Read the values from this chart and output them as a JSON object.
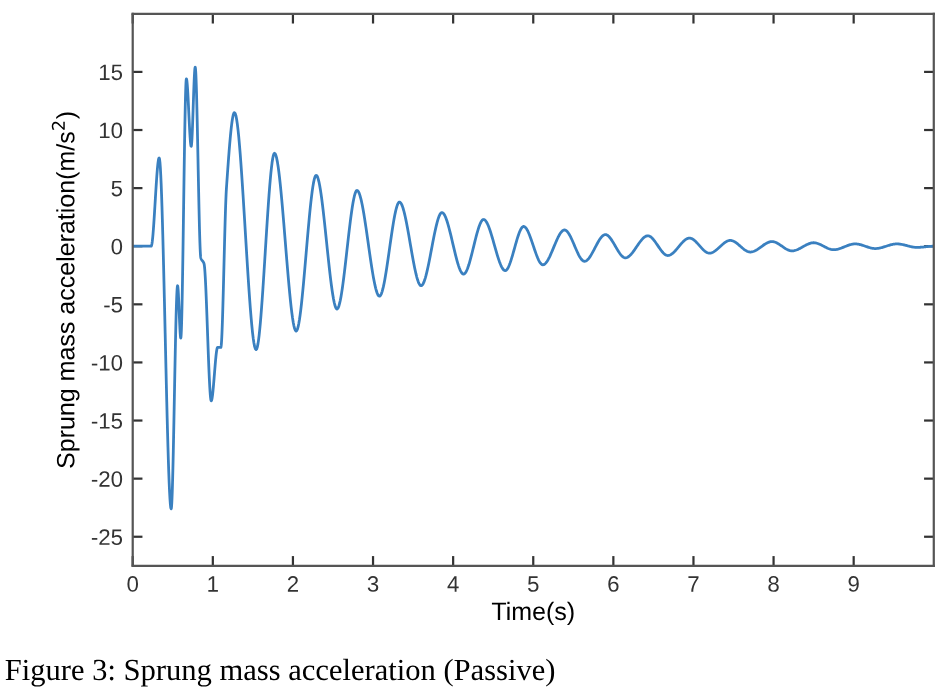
{
  "chart_data": {
    "type": "line",
    "xlabel": "Time(s)",
    "ylabel": "Sprung mass acceleration(m/s$^{2}$)",
    "annotations": [
      "Figure 3: Sprung mass acceleration (Passive)"
    ],
    "xlim": [
      0,
      10
    ],
    "ylim": [
      -27.5,
      20
    ],
    "xticks": [
      0,
      1,
      2,
      3,
      4,
      5,
      6,
      7,
      8,
      9
    ],
    "yticks": [
      -25,
      -20,
      -15,
      -10,
      -5,
      0,
      5,
      10,
      15
    ],
    "grid": false,
    "marker": "none",
    "line_style": "solid",
    "series": [
      {
        "color": "#3a80c0",
        "x": [
          0,
          0.23,
          0.33,
          0.48,
          0.56,
          0.6,
          0.67,
          0.73,
          0.78,
          0.85,
          0.89,
          0.98,
          1.06,
          1.1,
          1.17,
          1.27,
          1.54,
          1.77,
          2.04,
          2.29,
          2.55,
          2.8,
          3.08,
          3.33,
          3.6,
          3.86,
          4.13,
          4.38,
          4.65,
          4.88,
          5.12,
          5.39,
          5.64,
          5.9,
          6.15,
          6.43,
          6.68,
          6.95,
          7.2,
          7.46,
          7.71,
          7.98,
          8.23,
          8.5,
          8.75,
          9.02,
          9.27,
          9.54,
          9.79,
          10
        ],
        "values": [
          0,
          0,
          7.6,
          -22.6,
          -3.4,
          -7.9,
          14.4,
          8.6,
          15.4,
          -1.0,
          -1.5,
          -13.3,
          -8.7,
          -8.7,
          5,
          11.5,
          -8.9,
          8.0,
          -7.3,
          6.1,
          -5.4,
          4.8,
          -4.3,
          3.8,
          -3.4,
          2.9,
          -2.4,
          2.3,
          -2.1,
          1.7,
          -1.6,
          1.4,
          -1.3,
          1.0,
          -1.0,
          0.9,
          -0.8,
          0.7,
          -0.6,
          0.5,
          -0.5,
          0.4,
          -0.4,
          0.3,
          -0.3,
          0.2,
          -0.2,
          0.2,
          -0.1,
          0
        ]
      }
    ]
  }
}
